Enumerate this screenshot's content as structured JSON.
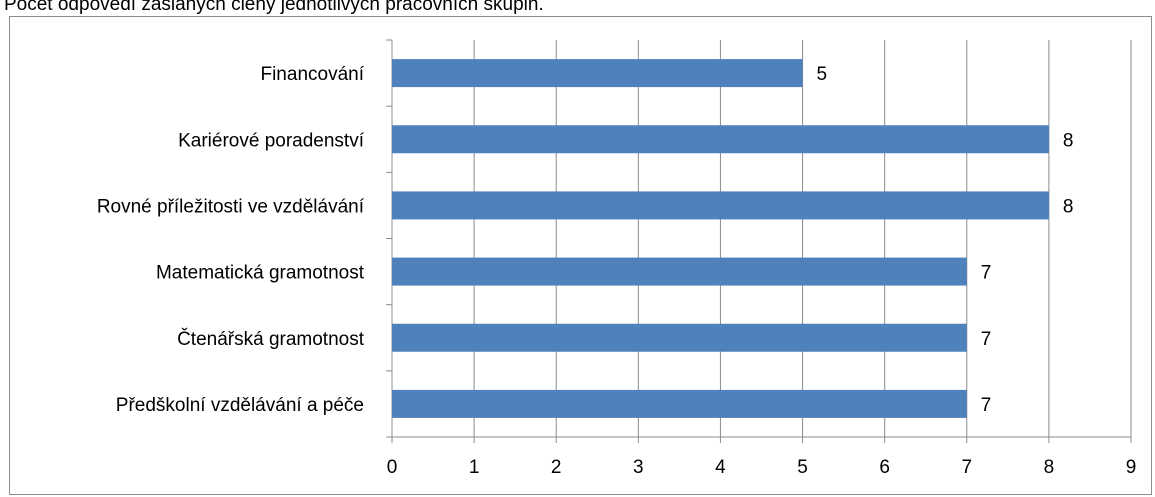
{
  "chart_data": {
    "type": "bar",
    "orientation": "horizontal",
    "title": "Počet odpovědí zaslaných členy jednotlivých pracovních skupin.",
    "categories": [
      "Financování",
      "Kariérové poradenství",
      "Rovné příležitosti ve vzdělávání",
      "Matematická gramotnost",
      "Čtenářská gramotnost",
      "Předškolní vzdělávání a péče"
    ],
    "values": [
      5,
      8,
      8,
      7,
      7,
      7
    ],
    "data_labels": [
      "5",
      "8",
      "8",
      "7",
      "7",
      "7"
    ],
    "xlim": [
      0,
      9
    ],
    "x_ticks": [
      "0",
      "1",
      "2",
      "3",
      "4",
      "5",
      "6",
      "7",
      "8",
      "9"
    ],
    "grid": true,
    "legend": "none",
    "colors": {
      "bar": "#4f81bd",
      "grid": "#8c8c8c",
      "axis": "#8c8c8c"
    }
  }
}
